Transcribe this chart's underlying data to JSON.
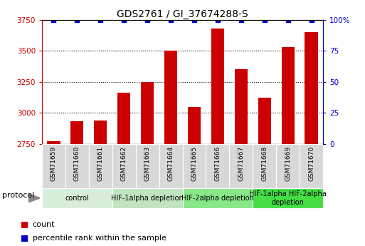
{
  "title": "GDS2761 / GI_37674288-S",
  "samples": [
    "GSM71659",
    "GSM71660",
    "GSM71661",
    "GSM71662",
    "GSM71663",
    "GSM71664",
    "GSM71665",
    "GSM71666",
    "GSM71667",
    "GSM71668",
    "GSM71669",
    "GSM71670"
  ],
  "counts": [
    2770,
    2930,
    2940,
    3160,
    3250,
    3500,
    3050,
    3680,
    3350,
    3120,
    3530,
    3650
  ],
  "percentile_ranks": [
    100,
    100,
    100,
    100,
    100,
    100,
    100,
    100,
    100,
    100,
    100,
    100
  ],
  "bar_color": "#cc0000",
  "dot_color": "#0000cc",
  "ylim_left": [
    2750,
    3750
  ],
  "ylim_right": [
    0,
    100
  ],
  "yticks_left": [
    2750,
    3000,
    3250,
    3500,
    3750
  ],
  "yticks_right": [
    0,
    25,
    50,
    75,
    100
  ],
  "yticklabels_right": [
    "0",
    "25",
    "50",
    "75",
    "100%"
  ],
  "background_color": "#ffffff",
  "protocol_groups": [
    {
      "label": "control",
      "indices": [
        0,
        1,
        2
      ],
      "color": "#d8eed8"
    },
    {
      "label": "HIF-1alpha depletion",
      "indices": [
        3,
        4,
        5
      ],
      "color": "#c0e4c0"
    },
    {
      "label": "HIF-2alpha depletion",
      "indices": [
        6,
        7,
        8
      ],
      "color": "#88e888"
    },
    {
      "label": "HIF-1alpha HIF-2alpha\ndepletion",
      "indices": [
        9,
        10,
        11
      ],
      "color": "#44dd44"
    }
  ],
  "protocol_label": "protocol",
  "title_fontsize": 10,
  "tick_fontsize": 7.5,
  "sample_fontsize": 6.5,
  "proto_fontsize": 7,
  "legend_fontsize": 8,
  "bar_width": 0.55
}
